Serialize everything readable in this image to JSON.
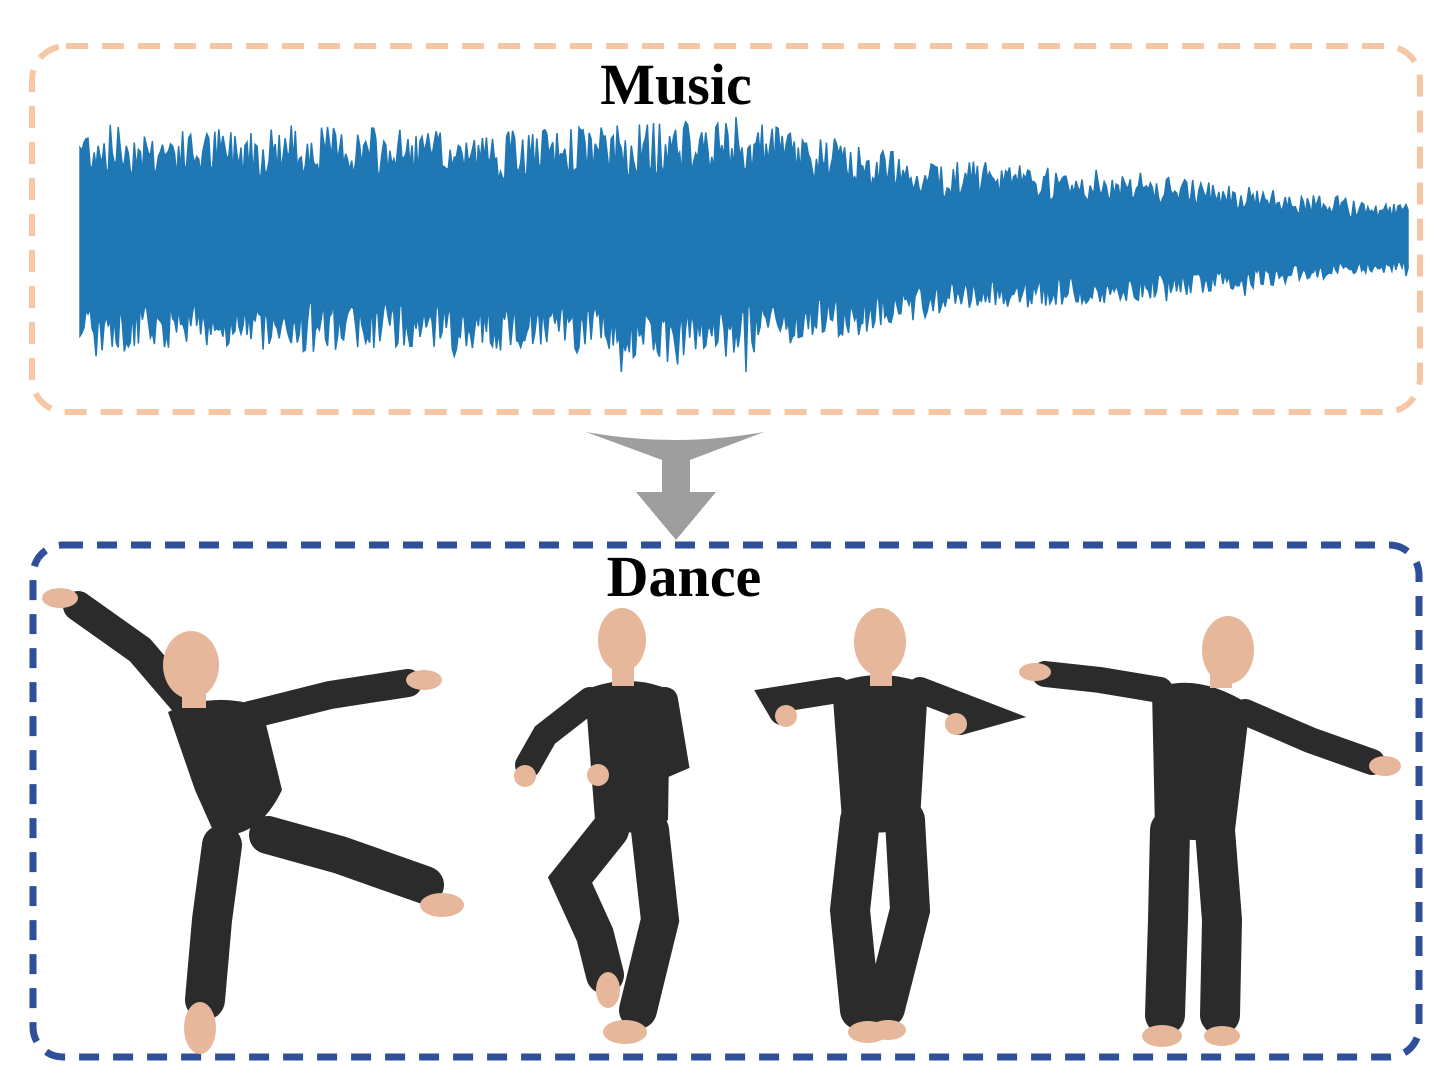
{
  "music": {
    "title": "Music"
  },
  "dance": {
    "title": "Dance"
  },
  "colors": {
    "music_border": "#f7c6a4",
    "dance_border": "#2f4f9a",
    "waveform": "#1f77b4",
    "arrow": "#9e9e9e",
    "suit": "#2b2b2b",
    "skin": "#e6b79a"
  },
  "waveform": {
    "envelope_upper": [
      [
        0.0,
        0.98
      ],
      [
        0.08,
        0.9
      ],
      [
        0.15,
        0.95
      ],
      [
        0.22,
        0.92
      ],
      [
        0.3,
        0.88
      ],
      [
        0.38,
        0.92
      ],
      [
        0.45,
        0.97
      ],
      [
        0.52,
        0.94
      ],
      [
        0.58,
        0.8
      ],
      [
        0.65,
        0.66
      ],
      [
        0.72,
        0.62
      ],
      [
        0.8,
        0.55
      ],
      [
        0.88,
        0.45
      ],
      [
        0.94,
        0.38
      ],
      [
        1.0,
        0.3
      ]
    ],
    "envelope_lower": [
      [
        0.0,
        0.9
      ],
      [
        0.08,
        0.8
      ],
      [
        0.15,
        0.86
      ],
      [
        0.22,
        0.82
      ],
      [
        0.3,
        0.84
      ],
      [
        0.38,
        0.88
      ],
      [
        0.45,
        0.96
      ],
      [
        0.52,
        0.86
      ],
      [
        0.58,
        0.72
      ],
      [
        0.65,
        0.56
      ],
      [
        0.72,
        0.5
      ],
      [
        0.8,
        0.45
      ],
      [
        0.88,
        0.36
      ],
      [
        0.94,
        0.28
      ],
      [
        1.0,
        0.22
      ]
    ]
  },
  "dancers": [
    {
      "pose": "lunge-reach"
    },
    {
      "pose": "knee-lift"
    },
    {
      "pose": "arms-bent-stand"
    },
    {
      "pose": "arms-wide-lean"
    }
  ]
}
